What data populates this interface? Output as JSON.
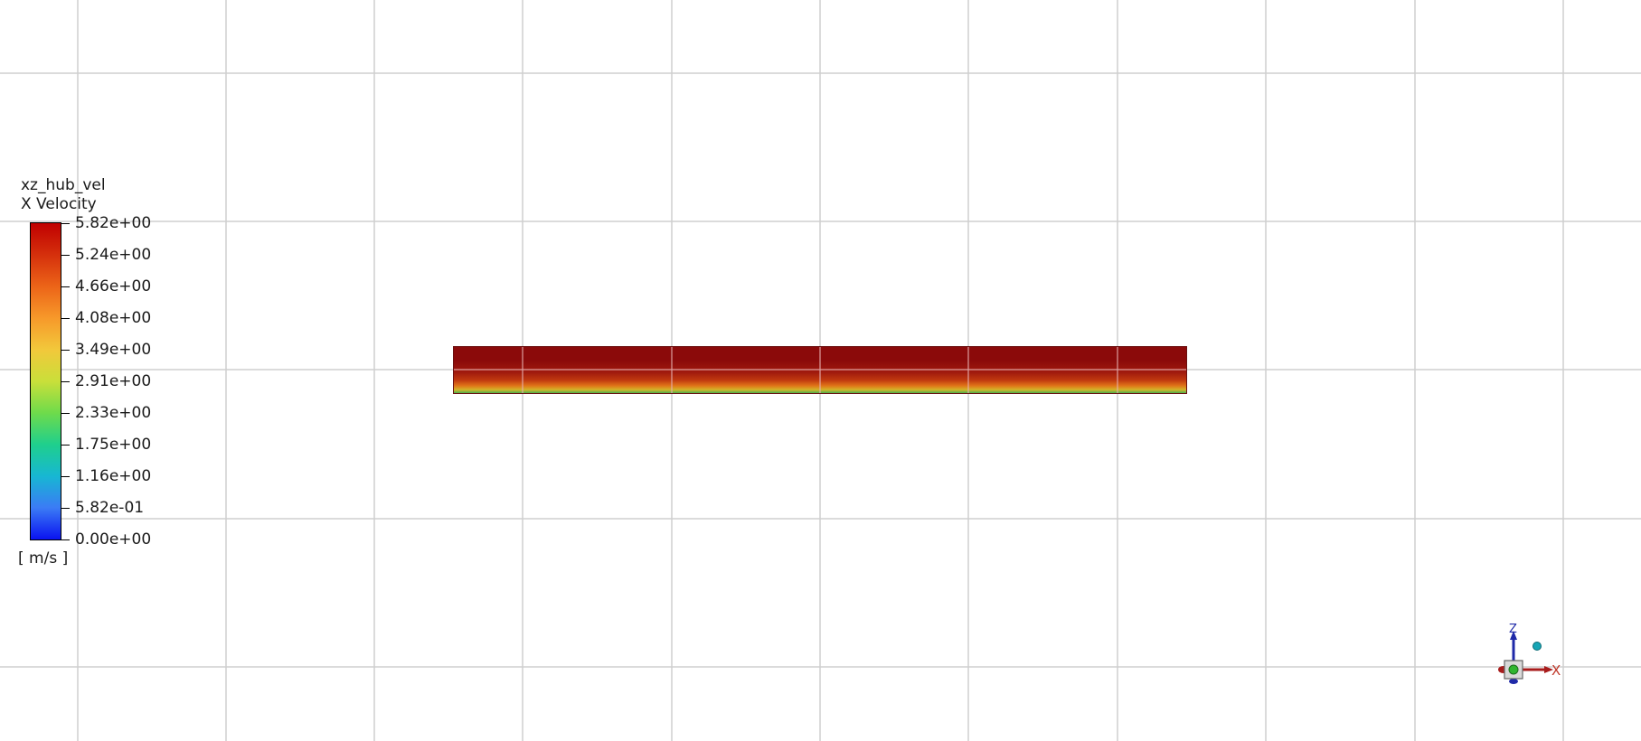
{
  "legend": {
    "title": "xz_hub_vel",
    "variable": "X Velocity",
    "units": "[ m/s ]",
    "ticks": [
      "5.82e+00",
      "5.24e+00",
      "4.66e+00",
      "4.08e+00",
      "3.49e+00",
      "2.91e+00",
      "2.33e+00",
      "1.75e+00",
      "1.16e+00",
      "5.82e-01",
      "0.00e+00"
    ],
    "colormap": [
      "#c00000",
      "#d5300c",
      "#ec6418",
      "#f7992a",
      "#f2c83b",
      "#c9df3a",
      "#6edb4b",
      "#1fcf8d",
      "#17b7d3",
      "#3b7bf5",
      "#0a12f0"
    ]
  },
  "triad": {
    "z_label": "Z",
    "x_label": "X"
  },
  "colors": {
    "grid": "#cfcfcf",
    "strip_top": "#8b0a0a",
    "strip_bottom": "#4caf50"
  }
}
